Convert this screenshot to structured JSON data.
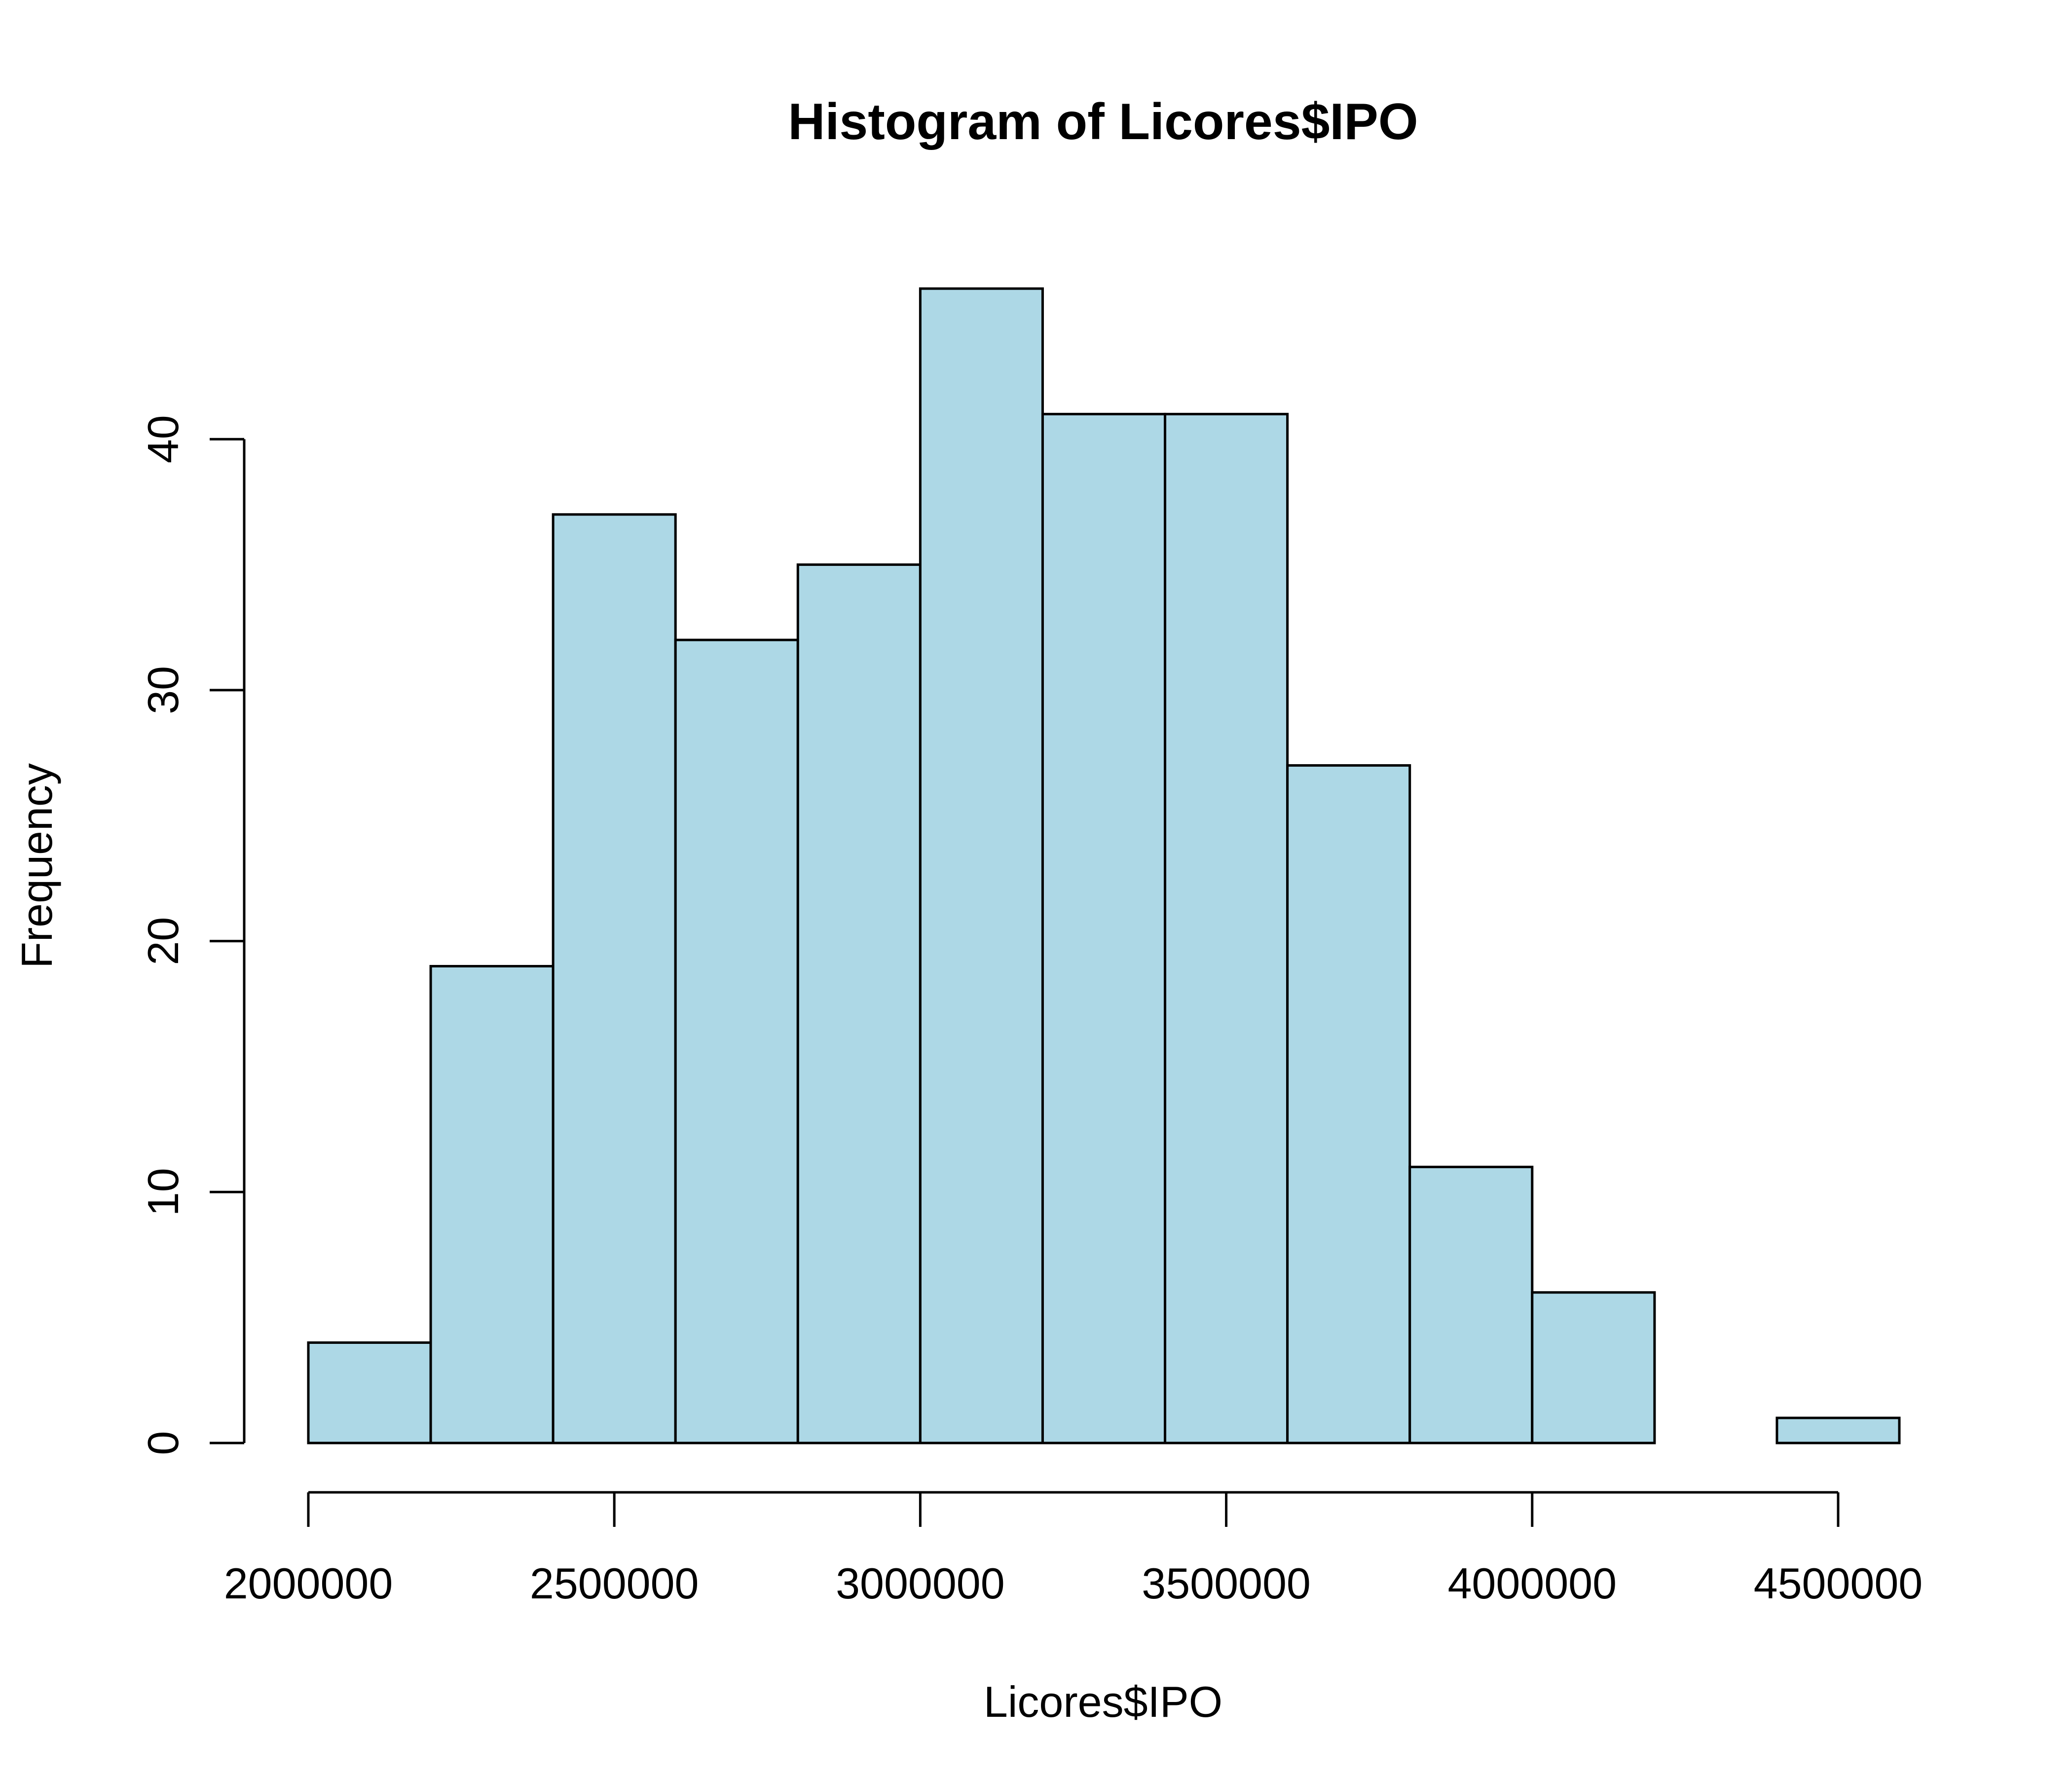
{
  "chart_data": {
    "type": "bar",
    "title": "Histogram of Licores$IPO",
    "xlabel": "Licores$IPO",
    "ylabel": "Frequency",
    "bins": [
      {
        "from": 2000000,
        "to": 2200000,
        "count": 4
      },
      {
        "from": 2200000,
        "to": 2400000,
        "count": 19
      },
      {
        "from": 2400000,
        "to": 2600000,
        "count": 37
      },
      {
        "from": 2600000,
        "to": 2800000,
        "count": 32
      },
      {
        "from": 2800000,
        "to": 3000000,
        "count": 35
      },
      {
        "from": 3000000,
        "to": 3200000,
        "count": 46
      },
      {
        "from": 3200000,
        "to": 3400000,
        "count": 41
      },
      {
        "from": 3400000,
        "to": 3600000,
        "count": 41
      },
      {
        "from": 3600000,
        "to": 3800000,
        "count": 27
      },
      {
        "from": 3800000,
        "to": 4000000,
        "count": 11
      },
      {
        "from": 4000000,
        "to": 4200000,
        "count": 6
      },
      {
        "from": 4200000,
        "to": 4400000,
        "count": 0
      },
      {
        "from": 4400000,
        "to": 4600000,
        "count": 1
      }
    ],
    "xlim": [
      2000000,
      4600000
    ],
    "ylim": [
      0,
      46
    ],
    "x_ticks": [
      2000000,
      2500000,
      3000000,
      3500000,
      4000000,
      4500000
    ],
    "y_ticks": [
      0,
      10,
      20,
      30,
      40
    ],
    "bar_color": "#add8e6",
    "grid": false
  }
}
